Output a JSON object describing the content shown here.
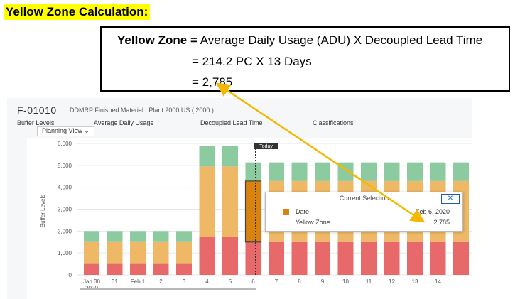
{
  "header": {
    "title": "Yellow Zone Calculation:",
    "formula_label": "Yellow Zone =",
    "formula_line1": "Average Daily Usage (ADU) X Decoupled Lead Time",
    "formula_line2": "= 214.2 PC X 13 Days",
    "formula_line3": "= 2,785"
  },
  "app": {
    "object_id": "F-01010",
    "object_desc": "DDMRP Finished Material , Plant 2000 US ( 2000 )",
    "tabs": [
      "Buffer Levels",
      "Average Daily Usage",
      "Decoupled Lead Time",
      "Classifications"
    ],
    "view_select": "Planning View",
    "today_label": "Today"
  },
  "popup": {
    "title": "Current Selection",
    "close_label": "✕",
    "date_label": "Date",
    "date_value": "Feb 6, 2020",
    "yz_label": "Yellow Zone",
    "yz_value": "2,785"
  },
  "chart_data": {
    "type": "bar",
    "stacked": true,
    "ylabel": "Buffer Levels",
    "ylim": [
      0,
      6000
    ],
    "yticks": [
      "0",
      "1,000",
      "2,000",
      "3,000",
      "4,000",
      "5,000",
      "6,000"
    ],
    "categories": [
      "Jan 30",
      "31",
      "Feb 1",
      "2",
      "3",
      "4",
      "5",
      "6",
      "7",
      "8",
      "9",
      "10",
      "11",
      "12",
      "13",
      "14",
      ""
    ],
    "year_label": "2020",
    "series": [
      {
        "color": "#e8696a",
        "values": [
          500,
          500,
          500,
          500,
          500,
          1720,
          1720,
          1500,
          1500,
          1500,
          1500,
          1500,
          1500,
          1500,
          1500,
          1500,
          1500
        ]
      },
      {
        "color": "#eeb866",
        "values": [
          1000,
          1000,
          1000,
          1000,
          1000,
          3230,
          3230,
          2785,
          2785,
          2785,
          2785,
          2785,
          2785,
          2785,
          2785,
          2785,
          2785
        ]
      },
      {
        "color": "#8ccb9f",
        "values": [
          500,
          500,
          500,
          500,
          500,
          950,
          950,
          850,
          850,
          850,
          850,
          850,
          850,
          850,
          850,
          850,
          850
        ]
      }
    ],
    "selected_index": 7,
    "selected_color": "#d9820f",
    "grid": true
  },
  "colors": {
    "arrow": "#f5b800",
    "highlight": "#ffff00"
  }
}
